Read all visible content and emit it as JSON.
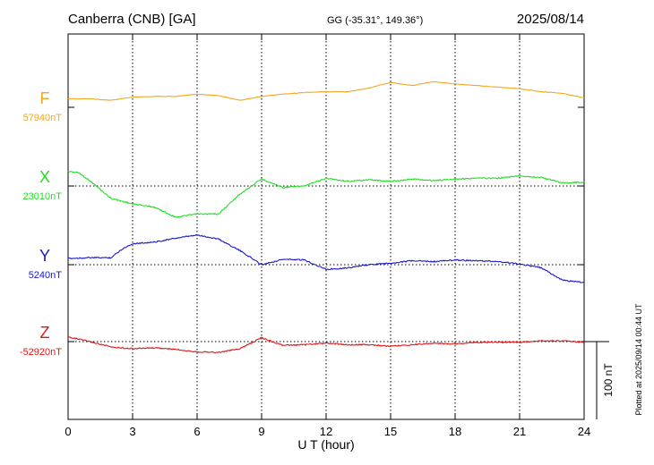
{
  "header": {
    "station": "Canberra (CNB)  [GA]",
    "coords": "GG (-35.31°, 149.36°)",
    "date": "2025/08/14"
  },
  "footer": {
    "plotted": "Plotted at 2025/09/14 00:44 UT",
    "scale_label": "100 nT"
  },
  "chart_data": {
    "type": "line",
    "title": "Canberra (CNB)  [GA]",
    "xlabel": "U T (hour)",
    "ylabel": "",
    "xlim": [
      0,
      24
    ],
    "x_ticks": [
      "0",
      "3",
      "6",
      "9",
      "12",
      "15",
      "18",
      "21",
      "24"
    ],
    "grid": true,
    "scale_nT_per_division": 100,
    "series": [
      {
        "name": "F",
        "baseline_label": "57940nT",
        "baseline": 57940,
        "color": "#f5a623",
        "x": [
          0,
          1,
          2,
          3,
          4,
          5,
          6,
          7,
          8,
          9,
          10,
          11,
          12,
          13,
          14,
          15,
          16,
          17,
          18,
          19,
          20,
          21,
          22,
          23,
          24
        ],
        "y": [
          57951,
          57951,
          57949,
          57953,
          57954,
          57954,
          57957,
          57955,
          57949,
          57954,
          57957,
          57959,
          57960,
          57960,
          57965,
          57972,
          57968,
          57973,
          57970,
          57968,
          57966,
          57964,
          57960,
          57958,
          57952
        ]
      },
      {
        "name": "X",
        "baseline_label": "23010nT",
        "baseline": 23010,
        "color": "#22dd22",
        "x": [
          0,
          0.5,
          1,
          2,
          3,
          4,
          5,
          6,
          7,
          8,
          9,
          10,
          11,
          12,
          13,
          14,
          15,
          16,
          17,
          18,
          19,
          20,
          21,
          22,
          23,
          24
        ],
        "y": [
          23029,
          23027,
          23017,
          22994,
          22987,
          22983,
          22970,
          22974,
          22974,
          23000,
          23019,
          23008,
          23010,
          23020,
          23016,
          23018,
          23016,
          23019,
          23017,
          23019,
          23020,
          23020,
          23023,
          23021,
          23014,
          23015
        ]
      },
      {
        "name": "Y",
        "baseline_label": "5240nT",
        "baseline": 5240,
        "color": "#1818cc",
        "x": [
          0,
          1,
          2,
          2.5,
          3,
          4,
          5,
          6,
          7,
          8,
          9,
          10,
          11,
          12,
          13,
          14,
          15,
          16,
          17,
          18,
          19,
          20,
          21,
          22,
          23,
          24
        ],
        "y": [
          5248,
          5249,
          5249,
          5260,
          5267,
          5269,
          5274,
          5278,
          5273,
          5258,
          5240,
          5247,
          5246,
          5234,
          5236,
          5240,
          5242,
          5245,
          5244,
          5246,
          5245,
          5244,
          5241,
          5236,
          5220,
          5217
        ]
      },
      {
        "name": "Z",
        "baseline_label": "-52920nT",
        "baseline": -52920,
        "color": "#dd1818",
        "x": [
          0,
          1,
          2,
          3,
          4,
          5,
          6,
          7,
          8,
          9,
          10,
          11,
          12,
          13,
          14,
          15,
          16,
          17,
          18,
          19,
          20,
          21,
          22,
          23,
          24
        ],
        "y": [
          -52914,
          -52920,
          -52927,
          -52929,
          -52928,
          -52930,
          -52933,
          -52934,
          -52929,
          -52915,
          -52925,
          -52924,
          -52922,
          -52924,
          -52924,
          -52926,
          -52924,
          -52922,
          -52923,
          -52921,
          -52921,
          -52921,
          -52919,
          -52919,
          -52921
        ]
      }
    ]
  }
}
